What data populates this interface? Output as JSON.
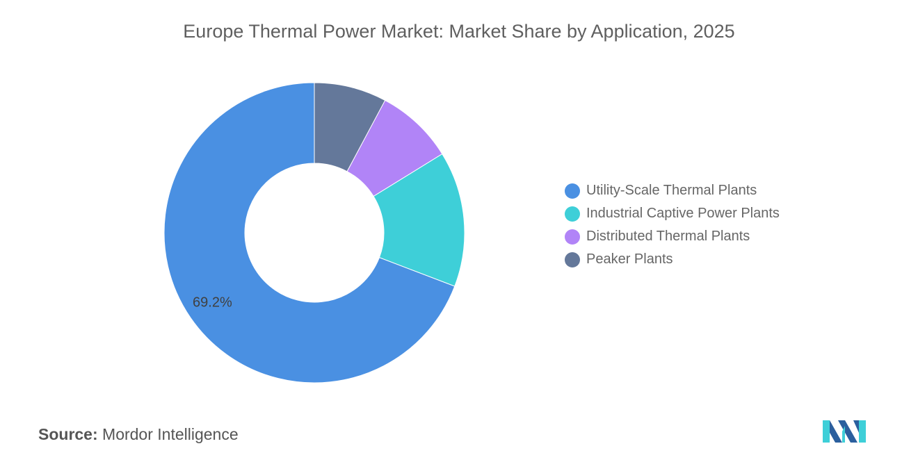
{
  "chart_data": {
    "type": "pie",
    "title": "Europe Thermal Power Market: Market Share by Application, 2025",
    "donut": true,
    "categories": [
      "Utility-Scale Thermal Plants",
      "Industrial Captive Power Plants",
      "Distributed Thermal Plants",
      "Peaker Plants"
    ],
    "values": [
      69.2,
      14.6,
      8.4,
      7.8
    ],
    "data_labels": [
      "69.2%",
      "",
      "",
      ""
    ],
    "colors": [
      "#4a90e2",
      "#3ecfd8",
      "#b184f7",
      "#64789a"
    ],
    "legend_position": "right"
  },
  "source": {
    "label": "Source:",
    "value": "Mordor Intelligence"
  }
}
